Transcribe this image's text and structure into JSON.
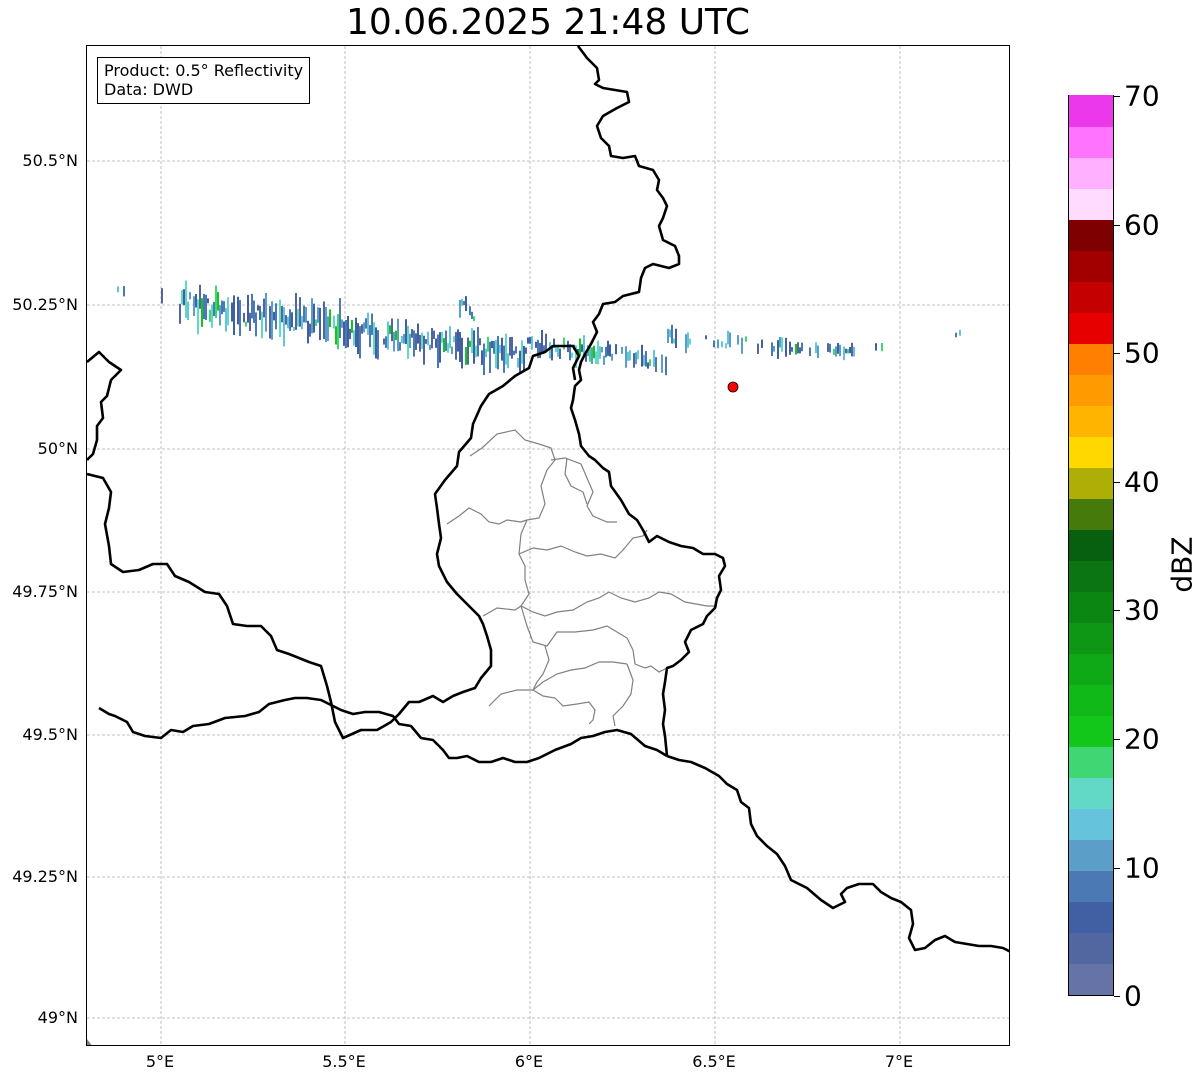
{
  "title": "10.06.2025 21:48 UTC",
  "info_box": {
    "product": "Product: 0.5° Reflectivity",
    "data": "Data: DWD"
  },
  "axes": {
    "lon_labels": [
      "5°E",
      "5.5°E",
      "6°E",
      "6.5°E",
      "7°E"
    ],
    "lat_labels": [
      "50.5°N",
      "50.25°N",
      "50°N",
      "49.75°N",
      "49.5°N",
      "49.25°N",
      "49°N"
    ]
  },
  "colorbar": {
    "unit": "dBZ",
    "tick_labels": [
      "70",
      "60",
      "50",
      "40",
      "30",
      "20",
      "10",
      "0"
    ],
    "colors": [
      "#6673a6",
      "#5266a0",
      "#4160a3",
      "#4a79b3",
      "#5b9fc9",
      "#66c3dc",
      "#62d8c6",
      "#3fd774",
      "#12c71a",
      "#10b818",
      "#0fa816",
      "#0e9714",
      "#0c8612",
      "#0a7511",
      "#07600f",
      "#467a0b",
      "#adaf06",
      "#ffd800",
      "#ffb400",
      "#ff9b00",
      "#ff7f00",
      "#e60000",
      "#c40000",
      "#a20000",
      "#7e0000",
      "#ffdcff",
      "#ffb0ff",
      "#ff73ff",
      "#eb38eb"
    ]
  },
  "marker": {
    "name": "Radar site",
    "color": "#ff0000"
  },
  "map_colors": {
    "border": "#000000",
    "admin": "#808080",
    "grid": "#b0b0b0"
  }
}
